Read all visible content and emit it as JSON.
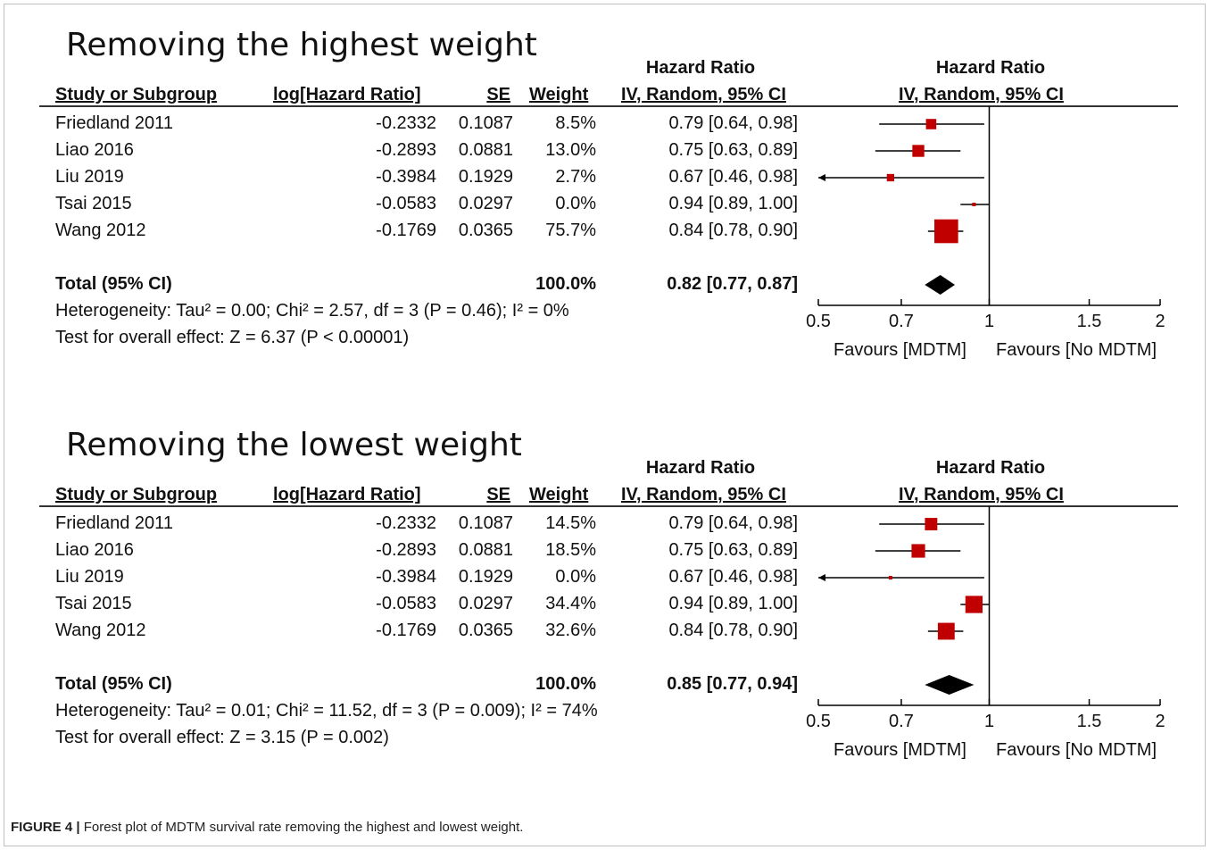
{
  "caption": {
    "label": "FIGURE 4 |",
    "text": " Forest plot of MDTM survival rate removing the highest and lowest weight."
  },
  "chart_data": [
    {
      "type": "forest",
      "title": "Removing the highest weight",
      "col_headers": {
        "study": "Study or Subgroup",
        "loghr": "log[Hazard Ratio]",
        "se": "SE",
        "weight": "Weight",
        "hr_top": "Hazard Ratio",
        "hr_sub": "IV, Random, 95% CI",
        "plot_top": "Hazard Ratio",
        "plot_sub": "IV, Random, 95% CI"
      },
      "studies": [
        {
          "name": "Friedland 2011",
          "loghr": "-0.2332",
          "se": "0.1087",
          "weight": "8.5%",
          "ci": "0.79 [0.64, 0.98]",
          "hr": 0.79,
          "lo": 0.64,
          "hi": 0.98,
          "w": 8.5
        },
        {
          "name": "Liao 2016",
          "loghr": "-0.2893",
          "se": "0.0881",
          "weight": "13.0%",
          "ci": "0.75 [0.63, 0.89]",
          "hr": 0.75,
          "lo": 0.63,
          "hi": 0.89,
          "w": 13.0
        },
        {
          "name": "Liu 2019",
          "loghr": "-0.3984",
          "se": "0.1929",
          "weight": "2.7%",
          "ci": "0.67 [0.46, 0.98]",
          "hr": 0.67,
          "lo": 0.46,
          "hi": 0.98,
          "w": 2.7
        },
        {
          "name": "Tsai 2015",
          "loghr": "-0.0583",
          "se": "0.0297",
          "weight": "0.0%",
          "ci": "0.94 [0.89, 1.00]",
          "hr": 0.94,
          "lo": 0.89,
          "hi": 1.0,
          "w": 0.0
        },
        {
          "name": "Wang 2012",
          "loghr": "-0.1769",
          "se": "0.0365",
          "weight": "75.7%",
          "ci": "0.84 [0.78, 0.90]",
          "hr": 0.84,
          "lo": 0.78,
          "hi": 0.9,
          "w": 75.7
        }
      ],
      "total": {
        "label": "Total (95% CI)",
        "weight": "100.0%",
        "ci": "0.82 [0.77, 0.87]",
        "hr": 0.82,
        "lo": 0.77,
        "hi": 0.87
      },
      "heterogeneity": "Heterogeneity: Tau² = 0.00; Chi² = 2.57, df = 3 (P = 0.46); I² = 0%",
      "overall_effect": "Test for overall effect: Z = 6.37 (P < 0.00001)",
      "axis": {
        "scale": "log",
        "ticks": [
          "0.5",
          "0.7",
          "1",
          "1.5",
          "2"
        ],
        "tick_values": [
          0.5,
          0.7,
          1,
          1.5,
          2
        ],
        "range": [
          0.5,
          2
        ]
      },
      "favours_left": "Favours [MDTM]",
      "favours_right": "Favours [No MDTM]",
      "colors": {
        "marker": "#c00000",
        "line": "#000000"
      }
    },
    {
      "type": "forest",
      "title": "Removing the lowest weight",
      "col_headers": {
        "study": "Study or Subgroup",
        "loghr": "log[Hazard Ratio]",
        "se": "SE",
        "weight": "Weight",
        "hr_top": "Hazard Ratio",
        "hr_sub": "IV, Random, 95% CI",
        "plot_top": "Hazard Ratio",
        "plot_sub": "IV, Random, 95% CI"
      },
      "studies": [
        {
          "name": "Friedland 2011",
          "loghr": "-0.2332",
          "se": "0.1087",
          "weight": "14.5%",
          "ci": "0.79 [0.64, 0.98]",
          "hr": 0.79,
          "lo": 0.64,
          "hi": 0.98,
          "w": 14.5
        },
        {
          "name": "Liao 2016",
          "loghr": "-0.2893",
          "se": "0.0881",
          "weight": "18.5%",
          "ci": "0.75 [0.63, 0.89]",
          "hr": 0.75,
          "lo": 0.63,
          "hi": 0.89,
          "w": 18.5
        },
        {
          "name": "Liu 2019",
          "loghr": "-0.3984",
          "se": "0.1929",
          "weight": "0.0%",
          "ci": "0.67 [0.46, 0.98]",
          "hr": 0.67,
          "lo": 0.46,
          "hi": 0.98,
          "w": 0.0
        },
        {
          "name": "Tsai 2015",
          "loghr": "-0.0583",
          "se": "0.0297",
          "weight": "34.4%",
          "ci": "0.94 [0.89, 1.00]",
          "hr": 0.94,
          "lo": 0.89,
          "hi": 1.0,
          "w": 34.4
        },
        {
          "name": "Wang 2012",
          "loghr": "-0.1769",
          "se": "0.0365",
          "weight": "32.6%",
          "ci": "0.84 [0.78, 0.90]",
          "hr": 0.84,
          "lo": 0.78,
          "hi": 0.9,
          "w": 32.6
        }
      ],
      "total": {
        "label": "Total (95% CI)",
        "weight": "100.0%",
        "ci": "0.85 [0.77, 0.94]",
        "hr": 0.85,
        "lo": 0.77,
        "hi": 0.94
      },
      "heterogeneity": "Heterogeneity: Tau² = 0.01; Chi² = 11.52, df = 3 (P = 0.009); I² = 74%",
      "overall_effect": "Test for overall effect: Z = 3.15 (P = 0.002)",
      "axis": {
        "scale": "log",
        "ticks": [
          "0.5",
          "0.7",
          "1",
          "1.5",
          "2"
        ],
        "tick_values": [
          0.5,
          0.7,
          1,
          1.5,
          2
        ],
        "range": [
          0.5,
          2
        ]
      },
      "favours_left": "Favours [MDTM]",
      "favours_right": "Favours [No MDTM]",
      "colors": {
        "marker": "#c00000",
        "line": "#000000"
      }
    }
  ]
}
